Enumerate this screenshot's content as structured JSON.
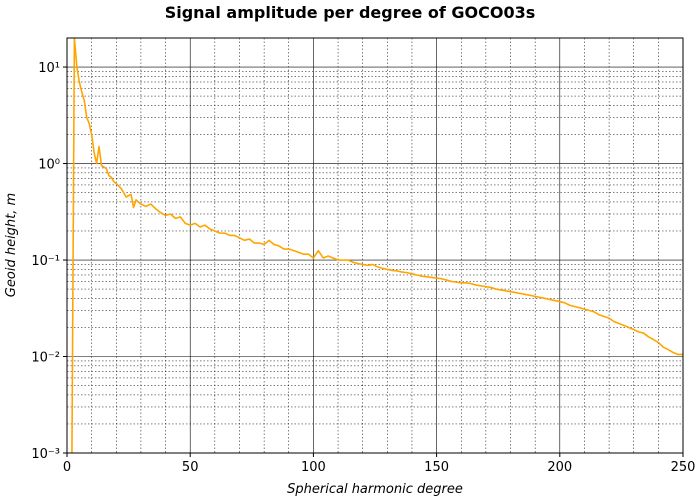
{
  "chart_data": {
    "type": "line",
    "title": "Signal amplitude per degree of GOCO03s",
    "xlabel": "Spherical harmonic degree",
    "ylabel": "Geoid height, m",
    "xlim": [
      0,
      250
    ],
    "ylim": [
      0.001,
      20
    ],
    "yscale": "log",
    "grid": "major and minor",
    "x_ticks": [
      0,
      50,
      100,
      150,
      200,
      250
    ],
    "x_tick_labels": [
      "0",
      "50",
      "100",
      "150",
      "200",
      "250"
    ],
    "y_ticks": [
      0.001,
      0.01,
      0.1,
      1,
      10
    ],
    "y_tick_labels": [
      "10⁻³",
      "10⁻²",
      "10⁻¹",
      "10⁰",
      "10¹"
    ],
    "series": [
      {
        "color": "#ffa500",
        "x": [
          2,
          3,
          4,
          5,
          6,
          7,
          8,
          9,
          10,
          11,
          12,
          13,
          14,
          15,
          16,
          17,
          18,
          19,
          20,
          22,
          24,
          26,
          27,
          28,
          30,
          32,
          34,
          36,
          38,
          40,
          42,
          44,
          46,
          48,
          50,
          52,
          54,
          56,
          58,
          60,
          62,
          64,
          66,
          68,
          70,
          72,
          74,
          76,
          78,
          80,
          82,
          84,
          86,
          88,
          90,
          92,
          94,
          96,
          98,
          100,
          102,
          104,
          106,
          108,
          110,
          112,
          114,
          116,
          118,
          120,
          122,
          124,
          126,
          128,
          130,
          132,
          134,
          136,
          138,
          140,
          142,
          144,
          146,
          148,
          150,
          152,
          154,
          156,
          158,
          160,
          162,
          164,
          166,
          168,
          170,
          172,
          174,
          176,
          178,
          180,
          182,
          184,
          186,
          188,
          190,
          192,
          194,
          196,
          198,
          200,
          202,
          204,
          206,
          208,
          210,
          212,
          214,
          216,
          218,
          220,
          222,
          224,
          226,
          228,
          230,
          232,
          234,
          236,
          238,
          240,
          242,
          244,
          246,
          248,
          250
        ],
        "y": [
          0.001,
          20,
          10,
          7,
          5.5,
          4.5,
          3.0,
          2.6,
          2.0,
          1.3,
          1.0,
          1.5,
          0.95,
          0.92,
          0.88,
          0.75,
          0.72,
          0.65,
          0.62,
          0.55,
          0.45,
          0.48,
          0.35,
          0.42,
          0.38,
          0.36,
          0.38,
          0.34,
          0.31,
          0.29,
          0.3,
          0.27,
          0.28,
          0.24,
          0.23,
          0.24,
          0.22,
          0.23,
          0.21,
          0.2,
          0.19,
          0.19,
          0.18,
          0.18,
          0.17,
          0.16,
          0.165,
          0.15,
          0.15,
          0.145,
          0.16,
          0.145,
          0.14,
          0.13,
          0.13,
          0.125,
          0.12,
          0.115,
          0.115,
          0.105,
          0.125,
          0.105,
          0.11,
          0.105,
          0.1,
          0.1,
          0.1,
          0.095,
          0.092,
          0.09,
          0.088,
          0.09,
          0.085,
          0.082,
          0.08,
          0.078,
          0.077,
          0.075,
          0.074,
          0.072,
          0.07,
          0.068,
          0.067,
          0.066,
          0.065,
          0.064,
          0.062,
          0.06,
          0.059,
          0.058,
          0.058,
          0.057,
          0.055,
          0.054,
          0.053,
          0.052,
          0.05,
          0.049,
          0.048,
          0.047,
          0.046,
          0.045,
          0.044,
          0.043,
          0.042,
          0.041,
          0.04,
          0.039,
          0.038,
          0.037,
          0.036,
          0.034,
          0.033,
          0.032,
          0.031,
          0.03,
          0.029,
          0.027,
          0.026,
          0.025,
          0.023,
          0.022,
          0.021,
          0.02,
          0.019,
          0.018,
          0.0175,
          0.016,
          0.015,
          0.014,
          0.0125,
          0.0118,
          0.011,
          0.0105,
          0.0105
        ]
      }
    ]
  }
}
